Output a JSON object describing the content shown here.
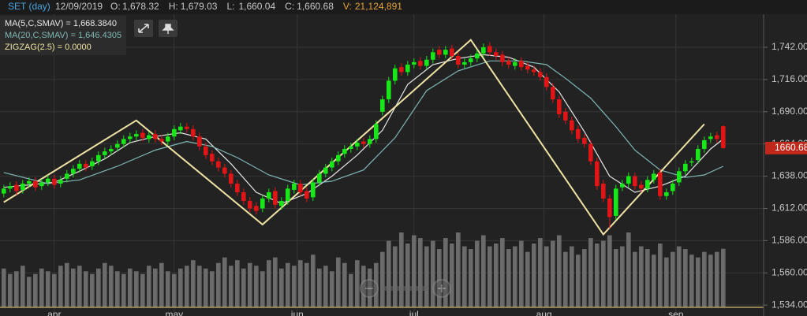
{
  "chart_data": {
    "type": "candlestick",
    "title": "SET (day)",
    "date": "12/09/2019",
    "quote": [
      {
        "label": "O:",
        "value": "1,678.32"
      },
      {
        "label": "H:",
        "value": "1,679.03"
      },
      {
        "label": "L:",
        "value": "1,660.04"
      },
      {
        "label": "C:",
        "value": "1,660.68"
      },
      {
        "label": "V:",
        "value": "21,124,891"
      }
    ],
    "up_color": "#19e619",
    "down_color": "#e01515",
    "volume_color": "#6b6b6b",
    "open": [
      1624,
      1628,
      1631,
      1627,
      1632,
      1634,
      1630,
      1633,
      1636,
      1632,
      1636,
      1640,
      1644,
      1648,
      1646,
      1650,
      1655,
      1658,
      1661,
      1664,
      1668,
      1670,
      1673,
      1668,
      1672,
      1668,
      1666,
      1670,
      1675,
      1678,
      1676,
      1670,
      1662,
      1656,
      1650,
      1645,
      1640,
      1632,
      1625,
      1618,
      1614,
      1612,
      1620,
      1626,
      1614,
      1618,
      1627,
      1632,
      1626,
      1621,
      1633,
      1640,
      1645,
      1650,
      1656,
      1660,
      1662,
      1666,
      1664,
      1668,
      1690,
      1700,
      1715,
      1726,
      1722,
      1728,
      1731,
      1727,
      1732,
      1740,
      1736,
      1741,
      1735,
      1728,
      1730,
      1733,
      1737,
      1743,
      1738,
      1736,
      1731,
      1727,
      1731,
      1727,
      1724,
      1722,
      1718,
      1710,
      1700,
      1690,
      1683,
      1676,
      1669,
      1664,
      1650,
      1632,
      1620,
      1606,
      1629,
      1632,
      1638,
      1631,
      1628,
      1635,
      1641,
      1622,
      1626,
      1633,
      1642,
      1649,
      1651,
      1660,
      1668,
      1671,
      1678.32
    ],
    "high": [
      1631,
      1633,
      1634,
      1635,
      1637,
      1637,
      1636,
      1639,
      1639,
      1638,
      1643,
      1647,
      1651,
      1651,
      1653,
      1658,
      1661,
      1663,
      1667,
      1671,
      1673,
      1675,
      1676,
      1674,
      1675,
      1671,
      1673,
      1679,
      1681,
      1681,
      1679,
      1673,
      1665,
      1659,
      1653,
      1648,
      1643,
      1635,
      1628,
      1621,
      1617,
      1623,
      1628,
      1629,
      1621,
      1631,
      1635,
      1635,
      1629,
      1636,
      1643,
      1648,
      1653,
      1658,
      1663,
      1665,
      1668,
      1669,
      1671,
      1683,
      1703,
      1718,
      1728,
      1729,
      1731,
      1733,
      1734,
      1735,
      1741,
      1743,
      1743,
      1744,
      1738,
      1733,
      1736,
      1740,
      1745,
      1746,
      1741,
      1739,
      1734,
      1733,
      1734,
      1730,
      1727,
      1725,
      1721,
      1713,
      1703,
      1693,
      1686,
      1679,
      1672,
      1667,
      1653,
      1635,
      1623,
      1631,
      1635,
      1641,
      1641,
      1634,
      1638,
      1643,
      1644,
      1628,
      1635,
      1645,
      1651,
      1653,
      1663,
      1670,
      1673,
      1674,
      1679.03
    ],
    "low": [
      1621,
      1625,
      1623,
      1624,
      1629,
      1626,
      1627,
      1630,
      1628,
      1629,
      1633,
      1637,
      1641,
      1642,
      1643,
      1647,
      1652,
      1655,
      1658,
      1661,
      1665,
      1667,
      1666,
      1665,
      1665,
      1663,
      1663,
      1667,
      1672,
      1673,
      1667,
      1659,
      1652,
      1647,
      1642,
      1637,
      1629,
      1622,
      1615,
      1609,
      1607,
      1609,
      1617,
      1612,
      1611,
      1615,
      1624,
      1622,
      1617,
      1618,
      1630,
      1637,
      1642,
      1647,
      1653,
      1657,
      1659,
      1661,
      1661,
      1665,
      1687,
      1697,
      1712,
      1719,
      1719,
      1725,
      1724,
      1724,
      1729,
      1733,
      1733,
      1732,
      1725,
      1725,
      1727,
      1730,
      1734,
      1735,
      1732,
      1727,
      1725,
      1724,
      1723,
      1721,
      1719,
      1715,
      1707,
      1697,
      1685,
      1680,
      1672,
      1665,
      1661,
      1647,
      1627,
      1617,
      1596,
      1603,
      1626,
      1629,
      1627,
      1625,
      1625,
      1632,
      1619,
      1619,
      1623,
      1630,
      1639,
      1646,
      1648,
      1657,
      1665,
      1665,
      1660.04
    ],
    "close": [
      1628,
      1630,
      1626,
      1632,
      1634,
      1629,
      1633,
      1636,
      1631,
      1635,
      1640,
      1644,
      1648,
      1645,
      1650,
      1655,
      1658,
      1660,
      1664,
      1668,
      1670,
      1672,
      1669,
      1671,
      1668,
      1666,
      1670,
      1676,
      1678,
      1676,
      1670,
      1662,
      1655,
      1650,
      1645,
      1640,
      1632,
      1625,
      1618,
      1612,
      1610,
      1620,
      1625,
      1615,
      1618,
      1628,
      1632,
      1625,
      1620,
      1633,
      1640,
      1645,
      1650,
      1655,
      1660,
      1662,
      1665,
      1664,
      1668,
      1680,
      1700,
      1715,
      1725,
      1722,
      1728,
      1730,
      1727,
      1732,
      1738,
      1736,
      1740,
      1735,
      1728,
      1730,
      1733,
      1737,
      1742,
      1738,
      1735,
      1730,
      1728,
      1730,
      1726,
      1724,
      1722,
      1718,
      1710,
      1700,
      1688,
      1683,
      1675,
      1668,
      1664,
      1650,
      1630,
      1620,
      1605,
      1628,
      1632,
      1638,
      1630,
      1628,
      1635,
      1640,
      1622,
      1625,
      1632,
      1642,
      1648,
      1650,
      1660,
      1667,
      1670,
      1668,
      1660.68
    ],
    "volume": [
      14,
      12,
      13,
      15,
      11,
      12,
      14,
      13,
      12,
      15,
      16,
      14,
      15,
      13,
      12,
      14,
      16,
      15,
      13,
      12,
      14,
      13,
      12,
      15,
      14,
      16,
      13,
      12,
      14,
      15,
      17,
      15,
      14,
      13,
      16,
      18,
      15,
      17,
      14,
      16,
      15,
      13,
      17,
      18,
      14,
      16,
      15,
      17,
      16,
      19,
      14,
      15,
      13,
      18,
      16,
      12,
      17,
      15,
      14,
      16,
      20,
      24,
      22,
      27,
      23,
      26,
      25,
      22,
      24,
      21,
      25,
      23,
      27,
      22,
      21,
      24,
      26,
      22,
      23,
      25,
      21,
      22,
      24,
      20,
      23,
      25,
      22,
      24,
      26,
      20,
      22,
      19,
      21,
      25,
      23,
      24,
      26,
      21,
      22,
      27,
      20,
      22,
      21,
      19,
      23,
      18,
      20,
      22,
      21,
      19,
      18,
      20,
      19,
      20,
      21.12
    ],
    "series": [
      {
        "name": "MA(5,C,SMAV) = 1,668.3840",
        "color": "#e6e6e6",
        "x": [
          0,
          4,
          8,
          12,
          16,
          20,
          24,
          28,
          32,
          36,
          40,
          44,
          48,
          52,
          56,
          60,
          64,
          68,
          72,
          76,
          80,
          84,
          88,
          92,
          96,
          100,
          104,
          108,
          112,
          114
        ],
        "values": [
          1629,
          1631,
          1633,
          1642,
          1652,
          1665,
          1670,
          1673,
          1668,
          1648,
          1625,
          1616,
          1624,
          1638,
          1655,
          1675,
          1712,
          1728,
          1733,
          1736,
          1734,
          1726,
          1706,
          1674,
          1638,
          1625,
          1630,
          1638,
          1660,
          1668
        ]
      },
      {
        "name": "MA(20,C,SMAV) = 1,646.4305",
        "color": "#7fb7b4",
        "x": [
          0,
          7,
          12,
          18,
          24,
          29,
          33,
          37,
          42,
          47,
          52,
          57,
          62,
          67,
          72,
          77,
          82,
          86,
          89,
          93,
          97,
          100,
          104,
          108,
          111,
          114
        ],
        "values": [
          1641,
          1632,
          1635,
          1646,
          1659,
          1666,
          1662,
          1653,
          1639,
          1631,
          1634,
          1643,
          1669,
          1707,
          1723,
          1731,
          1731,
          1728,
          1717,
          1701,
          1678,
          1659,
          1643,
          1637,
          1639,
          1646
        ]
      },
      {
        "name": "ZIGZAG(2.5) = 0.0000",
        "color": "#efe3a4",
        "x": [
          0,
          21,
          41,
          74,
          95,
          111
        ],
        "values": [
          1617,
          1683,
          1599,
          1748,
          1591,
          1680
        ]
      }
    ],
    "xlim": [
      -0.6,
      120.4
    ],
    "ylim": [
      1525.2,
      1768.7
    ],
    "yticks": [
      {
        "value": 1534,
        "label": "1,534.00"
      },
      {
        "value": 1560,
        "label": "1,560.00"
      },
      {
        "value": 1586,
        "label": "1,586.00"
      },
      {
        "value": 1612,
        "label": "1,612.00"
      },
      {
        "value": 1638,
        "label": "1,638.00"
      },
      {
        "value": 1664,
        "label": "1,664.00"
      },
      {
        "value": 1690,
        "label": "1,690.00"
      },
      {
        "value": 1716,
        "label": "1,716.00"
      },
      {
        "value": 1742,
        "label": "1,742.00"
      }
    ],
    "xticks": [
      {
        "value": 8,
        "label": "apr"
      },
      {
        "value": 27,
        "label": "may"
      },
      {
        "value": 46.5,
        "label": "jun"
      },
      {
        "value": 65,
        "label": "jul"
      },
      {
        "value": 85.6,
        "label": "aug"
      },
      {
        "value": 106.5,
        "label": "sep"
      }
    ],
    "grid": true
  }
}
